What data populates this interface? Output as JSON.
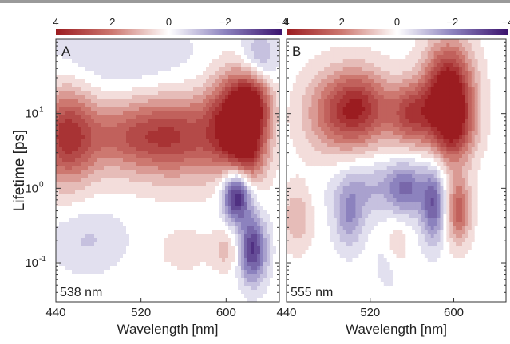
{
  "chart_data": [
    {
      "type": "heatmap",
      "panel_label": "A",
      "annotation": "538 nm",
      "xlabel": "Wavelength [nm]",
      "ylabel": "Lifetime [ps]",
      "x_ticks": [
        "440",
        "520",
        "600"
      ],
      "x_tick_values": [
        440,
        520,
        600
      ],
      "xlim": [
        440,
        650
      ],
      "y_scale": "log",
      "y_ticks": [
        "10^1",
        "10^0",
        "10^-1"
      ],
      "y_tick_values": [
        10,
        1,
        0.1
      ],
      "ylim": [
        0.03,
        100
      ],
      "colorbar_ticks": [
        "4",
        "2",
        "0",
        "−2",
        "−4"
      ],
      "colorbar_values": [
        4,
        2,
        0,
        -2,
        -4
      ],
      "features": [
        {
          "x": 450,
          "y": 5,
          "amp": 3.4,
          "sx": 20,
          "sy": 0.45
        },
        {
          "x": 510,
          "y": 5,
          "amp": 2.2,
          "sx": 30,
          "sy": 0.35
        },
        {
          "x": 560,
          "y": 5,
          "amp": 2.6,
          "sx": 30,
          "sy": 0.4
        },
        {
          "x": 610,
          "y": 8,
          "amp": 4.2,
          "sx": 18,
          "sy": 0.45
        },
        {
          "x": 625,
          "y": 15,
          "amp": 2.8,
          "sx": 12,
          "sy": 0.3
        },
        {
          "x": 620,
          "y": 3,
          "amp": 2.0,
          "sx": 12,
          "sy": 0.3
        },
        {
          "x": 610,
          "y": 0.8,
          "amp": -4.0,
          "sx": 9,
          "sy": 0.25
        },
        {
          "x": 625,
          "y": 0.15,
          "amp": -3.4,
          "sx": 9,
          "sy": 0.3
        },
        {
          "x": 630,
          "y": 50,
          "amp": -1.6,
          "sx": 12,
          "sy": 0.3
        },
        {
          "x": 500,
          "y": 50,
          "amp": -0.7,
          "sx": 60,
          "sy": 0.35
        },
        {
          "x": 470,
          "y": 0.2,
          "amp": -0.8,
          "sx": 25,
          "sy": 0.3
        },
        {
          "x": 600,
          "y": 0.15,
          "amp": 1.0,
          "sx": 10,
          "sy": 0.2
        },
        {
          "x": 560,
          "y": 0.15,
          "amp": 0.6,
          "sx": 15,
          "sy": 0.2
        }
      ]
    },
    {
      "type": "heatmap",
      "panel_label": "B",
      "annotation": "555 nm",
      "xlabel": "Wavelength [nm]",
      "ylabel": "",
      "x_ticks": [
        "440",
        "520",
        "600"
      ],
      "x_tick_values": [
        440,
        520,
        600
      ],
      "xlim": [
        440,
        650
      ],
      "y_scale": "log",
      "y_ticks": [],
      "y_tick_values": [
        10,
        1,
        0.1
      ],
      "ylim": [
        0.03,
        100
      ],
      "colorbar_ticks": [
        "4",
        "2",
        "0",
        "−2",
        "−4"
      ],
      "colorbar_values": [
        4,
        2,
        0,
        -2,
        -4
      ],
      "features": [
        {
          "x": 510,
          "y": 12,
          "amp": 3.4,
          "sx": 20,
          "sy": 0.35
        },
        {
          "x": 560,
          "y": 10,
          "amp": 3.0,
          "sx": 16,
          "sy": 0.3
        },
        {
          "x": 595,
          "y": 20,
          "amp": 4.5,
          "sx": 16,
          "sy": 0.45
        },
        {
          "x": 600,
          "y": 6,
          "amp": 2.4,
          "sx": 14,
          "sy": 0.35
        },
        {
          "x": 480,
          "y": 10,
          "amp": 1.6,
          "sx": 20,
          "sy": 0.4
        },
        {
          "x": 555,
          "y": 1.0,
          "amp": -2.0,
          "sx": 12,
          "sy": 0.25
        },
        {
          "x": 580,
          "y": 0.6,
          "amp": -2.6,
          "sx": 8,
          "sy": 0.35
        },
        {
          "x": 500,
          "y": 0.4,
          "amp": -1.6,
          "sx": 10,
          "sy": 0.3
        },
        {
          "x": 520,
          "y": 1.0,
          "amp": -1.2,
          "sx": 25,
          "sy": 0.25
        },
        {
          "x": 605,
          "y": 0.5,
          "amp": 2.6,
          "sx": 8,
          "sy": 0.3
        },
        {
          "x": 450,
          "y": 0.4,
          "amp": 1.2,
          "sx": 10,
          "sy": 0.3
        },
        {
          "x": 545,
          "y": 0.15,
          "amp": 1.0,
          "sx": 8,
          "sy": 0.25
        },
        {
          "x": 540,
          "y": 0.1,
          "amp": -0.8,
          "sx": 10,
          "sy": 0.25
        }
      ]
    }
  ]
}
